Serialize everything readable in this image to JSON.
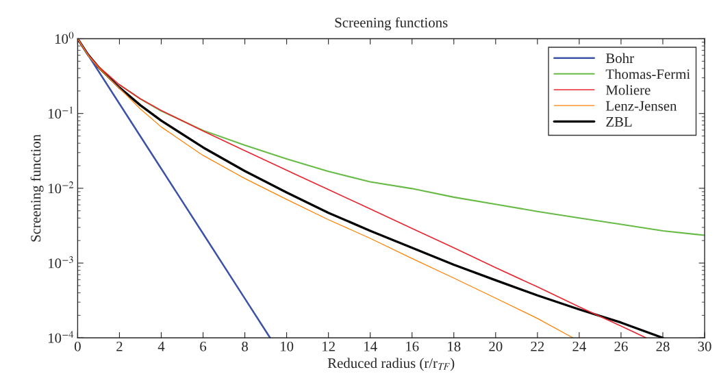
{
  "chart_data": {
    "type": "line",
    "title": "Screening functions",
    "xlabel": "Reduced radius (r/r$_{TF}$)",
    "ylabel": "Screening function",
    "log": "y",
    "grid": false,
    "legend": "top right",
    "line_style": "solid",
    "marker": "none",
    "xlim": [
      0,
      30
    ],
    "xticks": [
      0,
      2,
      4,
      6,
      8,
      10,
      12,
      14,
      16,
      18,
      20,
      22,
      24,
      26,
      28,
      30
    ],
    "ylim": [
      0.0001,
      1
    ],
    "yticks": [
      {
        "value": 0.0001,
        "label": "10$^{−4}$"
      },
      {
        "value": 0.001,
        "label": "10$^{−3}$"
      },
      {
        "value": 0.01,
        "label": "10$^{−2}$"
      },
      {
        "value": 0.1,
        "label": "10$^{−1}$"
      },
      {
        "value": 1,
        "label": "10$^{0}$"
      }
    ],
    "series": [
      {
        "name": "Bohr",
        "color": "#3c52a8",
        "x": [
          0,
          2,
          4,
          6,
          8,
          9.21
        ],
        "values": [
          1,
          0.135,
          0.0183,
          0.00248,
          0.000335,
          0.0001
        ]
      },
      {
        "name": "Thomas-Fermi",
        "color": "#66bb44",
        "x": [
          2,
          3,
          4,
          5,
          6,
          8,
          10,
          12,
          14,
          16,
          18,
          20,
          22,
          24,
          26,
          28,
          30
        ],
        "values": [
          0.243,
          0.157,
          0.108,
          0.08,
          0.0594,
          0.0376,
          0.0247,
          0.0168,
          0.0122,
          0.0099,
          0.0076,
          0.0061,
          0.0049,
          0.004,
          0.0033,
          0.0027,
          0.00235
        ]
      },
      {
        "name": "Moliere",
        "color": "#e8262f",
        "x": [
          0,
          0.5,
          1,
          2,
          3,
          4,
          6,
          8,
          10,
          12,
          14,
          16,
          18,
          20,
          22,
          24,
          26,
          27.2
        ],
        "values": [
          1,
          0.608,
          0.425,
          0.242,
          0.157,
          0.11,
          0.0583,
          0.0318,
          0.0174,
          0.0096,
          0.0053,
          0.0029,
          0.0016,
          0.00087,
          0.00048,
          0.00026,
          0.000144,
          0.0001
        ]
      },
      {
        "name": "Lenz-Jensen",
        "color": "#ff8000",
        "x": [
          0,
          0.5,
          1,
          2,
          3,
          4,
          6,
          8,
          10,
          12,
          14,
          16,
          18,
          20,
          22,
          23.7
        ],
        "values": [
          1,
          0.6,
          0.41,
          0.218,
          0.115,
          0.066,
          0.0275,
          0.0135,
          0.0071,
          0.0038,
          0.00214,
          0.00115,
          0.00063,
          0.00034,
          0.000182,
          0.0001
        ]
      },
      {
        "name": "ZBL",
        "color": "#000000",
        "x": [
          0,
          0.5,
          1,
          2,
          3,
          4,
          6,
          8,
          10,
          12,
          14,
          16,
          18,
          20,
          22,
          24,
          26,
          28
        ],
        "values": [
          1,
          0.61,
          0.416,
          0.222,
          0.129,
          0.0803,
          0.0352,
          0.017,
          0.0088,
          0.0047,
          0.0027,
          0.0016,
          0.00095,
          0.00059,
          0.00037,
          0.00024,
          0.00016,
          0.0001
        ]
      }
    ]
  }
}
